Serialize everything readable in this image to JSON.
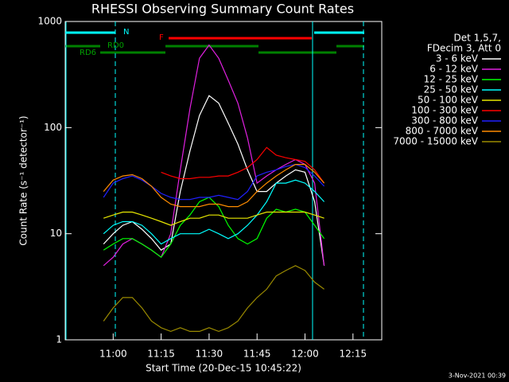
{
  "chart_data": {
    "type": "line",
    "title": "RHESSI Observing Summary Count Rates",
    "x_label": "Start Time (20-Dec-15 10:45:22)",
    "y_label": "Count Rate (s⁻¹ detector⁻¹)",
    "legend_header": [
      "Det 1,5,7,",
      "FDecim 3, Att 0"
    ],
    "annotations": [
      "N",
      "RD0",
      "RD6",
      "F"
    ],
    "footer": "3-Nov-2021 00:39",
    "log_y": true,
    "legend": "right",
    "xlim": [
      "10:45",
      "12:24"
    ],
    "xticks": [
      "11:00",
      "11:15",
      "11:30",
      "11:45",
      "12:00",
      "12:15"
    ],
    "ylim": [
      1,
      1000
    ],
    "yticks": [
      1,
      10,
      100,
      1000
    ],
    "x": [
      "10:57",
      "11:00",
      "11:03",
      "11:06",
      "11:09",
      "11:12",
      "11:15",
      "11:18",
      "11:21",
      "11:24",
      "11:27",
      "11:30",
      "11:33",
      "11:36",
      "11:39",
      "11:42",
      "11:45",
      "11:48",
      "11:51",
      "11:54",
      "11:57",
      "12:00",
      "12:03",
      "12:06"
    ],
    "series": [
      {
        "name": "3 - 6 keV",
        "color": "#ffffff",
        "values": [
          8,
          10,
          12,
          13,
          11,
          9,
          7,
          8,
          25,
          60,
          130,
          200,
          170,
          110,
          70,
          40,
          25,
          25,
          30,
          35,
          40,
          38,
          20,
          5
        ]
      },
      {
        "name": "6 - 12 keV",
        "color": "#e020e0",
        "values": [
          5,
          6,
          8,
          9,
          8,
          7,
          6,
          10,
          40,
          150,
          450,
          600,
          450,
          280,
          170,
          80,
          30,
          35,
          40,
          45,
          50,
          45,
          30,
          5
        ]
      },
      {
        "name": "12 - 25 keV",
        "color": "#00ff00",
        "values": [
          7,
          8,
          9,
          9,
          8,
          7,
          6,
          8,
          12,
          15,
          20,
          22,
          18,
          12,
          9,
          8,
          9,
          14,
          17,
          16,
          17,
          16,
          12,
          9
        ]
      },
      {
        "name": "25 - 50 keV",
        "color": "#00ffff",
        "values": [
          10,
          12,
          13,
          13,
          12,
          10,
          8,
          9,
          10,
          10,
          10,
          11,
          10,
          9,
          10,
          12,
          15,
          20,
          30,
          30,
          32,
          30,
          25,
          20
        ]
      },
      {
        "name": "50 - 100 keV",
        "color": "#e8e800",
        "values": [
          14,
          15,
          16,
          16,
          15,
          14,
          13,
          12,
          13,
          14,
          14,
          15,
          15,
          14,
          14,
          14,
          15,
          16,
          16,
          16,
          16,
          16,
          15,
          14
        ]
      },
      {
        "name": "100 - 300 keV",
        "color": "#ff0000",
        "values": [
          null,
          null,
          null,
          null,
          null,
          null,
          38,
          35,
          33,
          33,
          34,
          34,
          35,
          35,
          38,
          42,
          50,
          65,
          55,
          52,
          50,
          48,
          40,
          30
        ]
      },
      {
        "name": "300 - 800 keV",
        "color": "#2020ff",
        "values": [
          22,
          30,
          33,
          35,
          32,
          28,
          24,
          22,
          21,
          21,
          22,
          22,
          23,
          22,
          21,
          25,
          35,
          38,
          40,
          43,
          45,
          42,
          35,
          28
        ]
      },
      {
        "name": "800 - 7000 keV",
        "color": "#ff8c00",
        "values": [
          25,
          32,
          35,
          36,
          33,
          28,
          22,
          19,
          18,
          18,
          18,
          19,
          19,
          18,
          18,
          20,
          25,
          30,
          35,
          40,
          45,
          45,
          38,
          30
        ]
      },
      {
        "name": "7000 - 15000 keV",
        "color": "#9a8a00",
        "values": [
          1.5,
          2,
          2.5,
          2.5,
          2,
          1.5,
          1.3,
          1.2,
          1.3,
          1.2,
          1.2,
          1.3,
          1.2,
          1.3,
          1.5,
          2,
          2.5,
          3,
          4,
          4.5,
          5,
          4.5,
          3.5,
          3
        ]
      }
    ]
  }
}
